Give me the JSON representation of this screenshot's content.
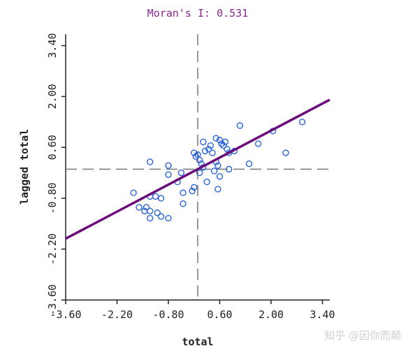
{
  "chart_data": {
    "type": "scatter",
    "title": "Moran's I: 0.531",
    "xlabel": "total",
    "ylabel": "lagged total",
    "xlim": [
      -3.6,
      3.6
    ],
    "ylim": [
      -3.6,
      3.6
    ],
    "xticks": [
      -3.6,
      -2.2,
      -0.8,
      0.6,
      2.0,
      3.4
    ],
    "xtick_labels": [
      "-3.60",
      "-2.20",
      "-0.80",
      "0.60",
      "2.00",
      "3.40"
    ],
    "yticks": [
      -3.6,
      -2.2,
      -0.8,
      0.6,
      2.0,
      3.4
    ],
    "ytick_labels": [
      "-3.60",
      "-2.20",
      "-0.80",
      "0.60",
      "2.00",
      "3.40"
    ],
    "regression": {
      "slope": 0.531,
      "intercept": 0
    },
    "reference_lines": {
      "x": 0,
      "y": 0
    },
    "colors": {
      "points": "#2a63d8",
      "line": "#6a0d7a",
      "title": "#8a2a8a"
    },
    "points": [
      [
        -1.75,
        -0.65
      ],
      [
        -1.3,
        -0.75
      ],
      [
        -1.15,
        -0.75
      ],
      [
        -1.0,
        -0.8
      ],
      [
        -1.6,
        -1.05
      ],
      [
        -1.4,
        -1.05
      ],
      [
        -1.45,
        -1.15
      ],
      [
        -1.3,
        -1.15
      ],
      [
        -1.1,
        -1.2
      ],
      [
        -1.3,
        -1.35
      ],
      [
        -1.0,
        -1.3
      ],
      [
        -0.8,
        -1.35
      ],
      [
        -1.3,
        0.2
      ],
      [
        -0.8,
        0.1
      ],
      [
        -0.45,
        -0.1
      ],
      [
        -0.8,
        -0.15
      ],
      [
        -0.55,
        -0.35
      ],
      [
        -0.4,
        -0.65
      ],
      [
        -0.4,
        -0.95
      ],
      [
        -0.1,
        -0.5
      ],
      [
        -0.15,
        -0.6
      ],
      [
        -0.05,
        0.35
      ],
      [
        -0.1,
        0.45
      ],
      [
        0.0,
        0.4
      ],
      [
        0.05,
        0.25
      ],
      [
        0.1,
        0.15
      ],
      [
        0.2,
        0.5
      ],
      [
        0.3,
        0.55
      ],
      [
        0.15,
        0.75
      ],
      [
        0.35,
        0.65
      ],
      [
        0.4,
        0.45
      ],
      [
        0.5,
        0.85
      ],
      [
        0.6,
        0.8
      ],
      [
        0.65,
        0.7
      ],
      [
        0.7,
        0.65
      ],
      [
        0.75,
        0.75
      ],
      [
        0.8,
        0.55
      ],
      [
        0.85,
        0.45
      ],
      [
        1.0,
        0.5
      ],
      [
        1.15,
        1.2
      ],
      [
        1.65,
        0.7
      ],
      [
        2.05,
        1.05
      ],
      [
        2.85,
        1.3
      ],
      [
        2.4,
        0.45
      ],
      [
        0.5,
        0.2
      ],
      [
        0.55,
        0.1
      ],
      [
        0.45,
        -0.05
      ],
      [
        0.85,
        0.0
      ],
      [
        0.25,
        -0.35
      ],
      [
        0.6,
        -0.2
      ],
      [
        0.55,
        -0.55
      ],
      [
        1.4,
        0.15
      ],
      [
        0.05,
        -0.1
      ],
      [
        0.15,
        0.05
      ]
    ]
  },
  "watermark": "知乎 @因你而颠"
}
